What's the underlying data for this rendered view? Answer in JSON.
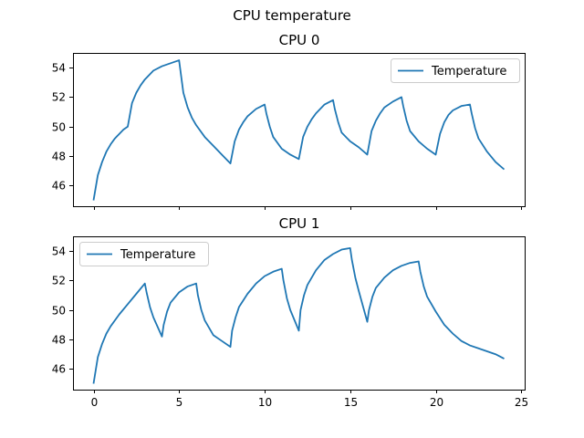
{
  "chart_data": {
    "type": "line",
    "title": "CPU temperature",
    "xlim": [
      -1.2,
      25.2
    ],
    "xticks": [
      0,
      5,
      10,
      15,
      20,
      25
    ],
    "ylim": [
      44.6,
      55.0
    ],
    "yticks": [
      46,
      48,
      50,
      52,
      54
    ],
    "colors": {
      "line": "#1f77b4"
    },
    "panels": [
      {
        "title": "CPU 0",
        "legend_position": "upper right",
        "series": [
          {
            "name": "Temperature",
            "x": [
              0,
              0.25,
              0.5,
              0.75,
              1,
              1.25,
              1.5,
              1.75,
              2,
              2.25,
              2.5,
              2.75,
              3,
              3.5,
              4,
              4.5,
              5,
              5.25,
              5.5,
              5.75,
              6,
              6.5,
              7,
              7.5,
              8,
              8.25,
              8.5,
              8.75,
              9,
              9.5,
              10,
              10.1,
              10.3,
              10.5,
              11,
              11.5,
              12,
              12.25,
              12.5,
              12.75,
              13,
              13.5,
              14,
              14.1,
              14.3,
              14.5,
              15,
              15.5,
              16,
              16.25,
              16.5,
              16.75,
              17,
              17.5,
              18,
              18.1,
              18.3,
              18.5,
              19,
              19.5,
              20,
              20.25,
              20.5,
              20.75,
              21,
              21.5,
              22,
              22.1,
              22.3,
              22.5,
              23,
              23.5,
              24
            ],
            "y": [
              45.0,
              46.7,
              47.6,
              48.3,
              48.8,
              49.2,
              49.5,
              49.8,
              50.0,
              51.6,
              52.3,
              52.8,
              53.2,
              53.8,
              54.1,
              54.3,
              54.5,
              52.3,
              51.3,
              50.6,
              50.1,
              49.3,
              48.7,
              48.1,
              47.5,
              49.0,
              49.8,
              50.3,
              50.7,
              51.2,
              51.5,
              50.9,
              50.0,
              49.3,
              48.5,
              48.1,
              47.8,
              49.3,
              50.0,
              50.5,
              50.9,
              51.5,
              51.8,
              51.2,
              50.3,
              49.6,
              49.0,
              48.6,
              48.1,
              49.7,
              50.4,
              50.9,
              51.3,
              51.7,
              52.0,
              51.4,
              50.4,
              49.7,
              49.0,
              48.5,
              48.1,
              49.5,
              50.3,
              50.8,
              51.1,
              51.4,
              51.5,
              50.9,
              49.9,
              49.2,
              48.3,
              47.6,
              47.1
            ]
          }
        ]
      },
      {
        "title": "CPU 1",
        "legend_position": "upper left",
        "series": [
          {
            "name": "Temperature",
            "x": [
              0,
              0.25,
              0.5,
              0.75,
              1,
              1.5,
              2,
              2.5,
              3,
              3.1,
              3.3,
              3.5,
              4,
              4.1,
              4.3,
              4.5,
              5,
              5.5,
              6,
              6.1,
              6.3,
              6.5,
              7,
              7.5,
              8,
              8.1,
              8.3,
              8.5,
              9,
              9.5,
              10,
              10.5,
              11,
              11.1,
              11.3,
              11.5,
              12,
              12.1,
              12.3,
              12.5,
              13,
              13.5,
              14,
              14.5,
              15,
              15.1,
              15.3,
              15.5,
              16,
              16.1,
              16.3,
              16.5,
              17,
              17.5,
              18,
              18.5,
              19,
              19.1,
              19.3,
              19.5,
              20,
              20.5,
              21,
              21.5,
              22,
              22.5,
              23,
              23.5,
              24
            ],
            "y": [
              45.0,
              46.8,
              47.7,
              48.4,
              48.9,
              49.7,
              50.4,
              51.1,
              51.8,
              51.2,
              50.2,
              49.5,
              48.2,
              49.0,
              49.9,
              50.5,
              51.2,
              51.6,
              51.8,
              51.0,
              50.0,
              49.3,
              48.3,
              47.9,
              47.5,
              48.6,
              49.5,
              50.2,
              51.1,
              51.8,
              52.3,
              52.6,
              52.8,
              52.0,
              50.8,
              50.0,
              48.6,
              50.0,
              51.0,
              51.7,
              52.7,
              53.4,
              53.8,
              54.1,
              54.2,
              53.4,
              52.2,
              51.3,
              49.2,
              50.0,
              50.9,
              51.5,
              52.2,
              52.7,
              53.0,
              53.2,
              53.3,
              52.6,
              51.6,
              50.9,
              49.9,
              49.0,
              48.4,
              47.9,
              47.6,
              47.4,
              47.2,
              47.0,
              46.7
            ]
          }
        ]
      }
    ]
  }
}
